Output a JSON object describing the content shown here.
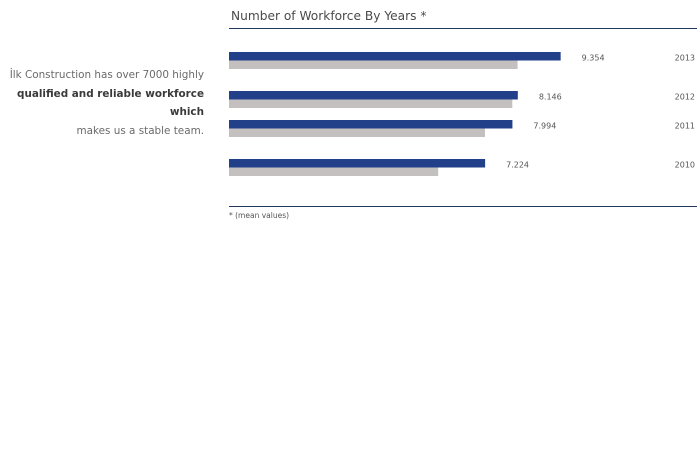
{
  "intro": {
    "line1": "İlk Construction has over 7000 highly",
    "line2": "qualified and reliable workforce which",
    "line3": "makes us a stable team."
  },
  "colors": {
    "primary": "#223f8a",
    "secondary": "#c5c0c0",
    "rule": "#1f3a5c"
  },
  "chart_data": {
    "type": "bar",
    "orientation": "horizontal",
    "title": "Number of Workforce By Years *",
    "footnote": "* (mean values)",
    "categories": [
      "2013",
      "2012",
      "2011",
      "2010"
    ],
    "series": [
      {
        "values": [
          9.354,
          8.146,
          7.994,
          7.224
        ],
        "labels": [
          "9.354",
          "8.146",
          "7.994",
          "7.224"
        ]
      },
      {
        "values": [
          8.14,
          7.99,
          7.22,
          5.9
        ]
      }
    ],
    "xlim": [
      0,
      13.2
    ]
  }
}
